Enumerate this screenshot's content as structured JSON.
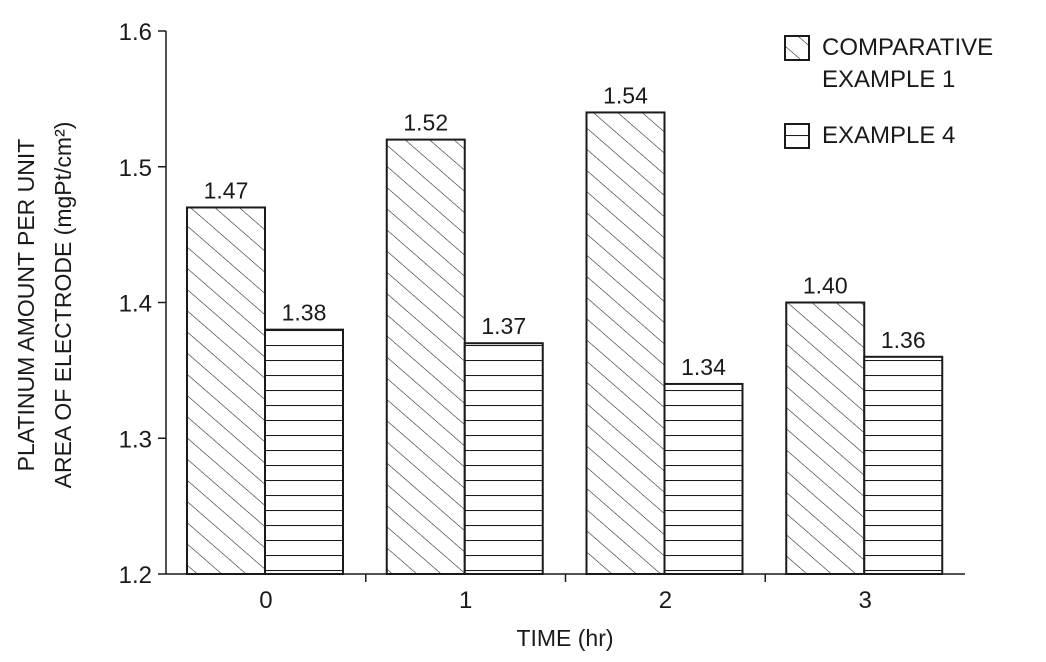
{
  "chart_data": {
    "type": "bar",
    "xlabel": "TIME (hr)",
    "ylabel_line1": "PLATINUM AMOUNT PER UNIT",
    "ylabel_line2": "AREA OF ELECTRODE (mgPt/cm²)",
    "categories": [
      "0",
      "1",
      "2",
      "3"
    ],
    "ylim": [
      1.2,
      1.6
    ],
    "yticks": [
      "1.2",
      "1.3",
      "1.4",
      "1.5",
      "1.6"
    ],
    "legend_position": "top-right",
    "grid": false,
    "series": [
      {
        "name": "COMPARATIVE EXAMPLE 1",
        "legend_line1": "COMPARATIVE",
        "legend_line2": "EXAMPLE 1",
        "pattern": "diagonal-hatch",
        "values": [
          1.47,
          1.52,
          1.54,
          1.4
        ],
        "labels": [
          "1.47",
          "1.52",
          "1.54",
          "1.40"
        ]
      },
      {
        "name": "EXAMPLE 4",
        "legend_line1": "EXAMPLE 4",
        "pattern": "horizontal-lines",
        "values": [
          1.38,
          1.37,
          1.34,
          1.36
        ],
        "labels": [
          "1.38",
          "1.37",
          "1.34",
          "1.36"
        ]
      }
    ]
  },
  "colors": {
    "ink": "#1a1a1a",
    "background": "#ffffff"
  }
}
